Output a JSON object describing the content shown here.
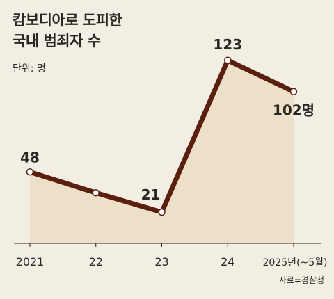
{
  "title_lines": [
    "캄보디아로 도피한",
    "국내 범죄자 수"
  ],
  "unit": "단위: 명",
  "source": "자료=경찰청",
  "colors": {
    "background": "#f3eee3",
    "line": "#5a1f0e",
    "area": "#ece0c8",
    "axis": "#2a2622"
  },
  "chart_data": {
    "type": "line",
    "x": [
      "2021",
      "22",
      "23",
      "24",
      "2025년(~5월)"
    ],
    "values": [
      48,
      34,
      21,
      123,
      102
    ],
    "data_labels": [
      "48",
      "",
      "21",
      "123",
      "102명"
    ],
    "title": "캄보디아로 도피한 국내 범죄자 수",
    "ylabel": "단위: 명",
    "grid": false
  }
}
